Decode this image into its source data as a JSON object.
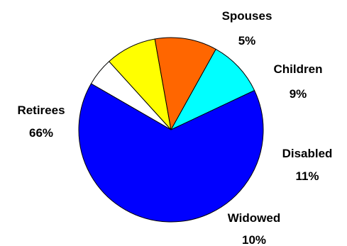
{
  "chart_data": {
    "type": "pie",
    "title": "",
    "slices": [
      {
        "label": "Spouses",
        "percent_label": "5%",
        "value": 5,
        "color": "#FFFFFF"
      },
      {
        "label": "Children",
        "percent_label": "9%",
        "value": 9,
        "color": "#FFFF00"
      },
      {
        "label": "Disabled",
        "percent_label": "11%",
        "value": 11,
        "color": "#FF6600"
      },
      {
        "label": "Widowed",
        "percent_label": "10%",
        "value": 10,
        "color": "#00FFFF"
      },
      {
        "label": "Retirees",
        "percent_label": "66%",
        "value": 66,
        "color": "#0000FF"
      }
    ],
    "legend": "none",
    "labels": "outside"
  }
}
